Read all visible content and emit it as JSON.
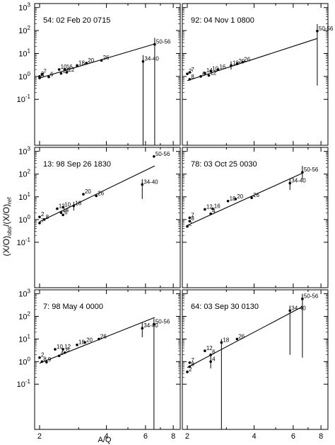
{
  "figure": {
    "ylabel": "(X/O)obs/(X/O)ref",
    "ylabel_main": "(X/O)",
    "ylabel_sub1": "obs",
    "ylabel_mid": "/(X/O)",
    "ylabel_sub2": "ref",
    "xlabel": "A/Q",
    "x_ticks": [
      2,
      4,
      6,
      8
    ],
    "x_tick_labels": [
      "2",
      "4",
      "6",
      "8"
    ],
    "y_ticks": [
      -1,
      0,
      1,
      2,
      3
    ],
    "y_tick_base": "10",
    "y_tick_exponents": [
      "-1",
      "0",
      "1",
      "2",
      "3"
    ],
    "x_scale": "log",
    "y_scale": "log"
  },
  "chart_data": [
    {
      "type": "scatter",
      "title": "54:  02 Feb 20 0715",
      "xlim": [
        1.9,
        8.6
      ],
      "ylim": [
        0.001,
        1500
      ],
      "xscale": "log",
      "yscale": "log",
      "fit_line": {
        "x": [
          2.0,
          6.6
        ],
        "y": [
          0.85,
          26
        ]
      },
      "points": [
        {
          "label": "2",
          "x": 2.0,
          "y": 1.0,
          "ylow": null,
          "yhigh": null
        },
        {
          "label": "7",
          "x": 2.05,
          "y": 1.25,
          "ylow": null,
          "yhigh": null
        },
        {
          "label": "8",
          "x": 2.0,
          "y": 0.85,
          "ylow": null,
          "yhigh": null
        },
        {
          "label": "6",
          "x": 2.2,
          "y": 0.95,
          "ylow": null,
          "yhigh": null
        },
        {
          "label": "10",
          "x": 2.45,
          "y": 2.0,
          "ylow": null,
          "yhigh": null
        },
        {
          "label": "16",
          "x": 2.6,
          "y": 2.0,
          "ylow": null,
          "yhigh": null
        },
        {
          "label": "14",
          "x": 2.5,
          "y": 1.35,
          "ylow": null,
          "yhigh": null
        },
        {
          "label": "12",
          "x": 2.65,
          "y": 1.5,
          "ylow": null,
          "yhigh": null
        },
        {
          "label": "18",
          "x": 2.95,
          "y": 3.0,
          "ylow": null,
          "yhigh": null
        },
        {
          "label": "20",
          "x": 3.25,
          "y": 3.8,
          "ylow": null,
          "yhigh": null
        },
        {
          "label": "26",
          "x": 3.8,
          "y": 5.0,
          "ylow": null,
          "yhigh": null
        },
        {
          "label": "34-40",
          "x": 5.85,
          "y": 4.5,
          "ylow": 0.001,
          "yhigh": 8.5
        },
        {
          "label": "50-56",
          "x": 6.6,
          "y": 25,
          "ylow": 0.001,
          "yhigh": 48
        }
      ]
    },
    {
      "type": "scatter",
      "title": "92:  04 Nov  1 0800",
      "xlim": [
        1.9,
        8.6
      ],
      "ylim": [
        0.001,
        1500
      ],
      "xscale": "log",
      "yscale": "log",
      "fit_line": {
        "x": [
          2.0,
          7.7
        ],
        "y": [
          0.65,
          45
        ]
      },
      "points": [
        {
          "label": "7",
          "x": 2.05,
          "y": 1.5,
          "ylow": null,
          "yhigh": null
        },
        {
          "label": "2",
          "x": 2.0,
          "y": 1.3,
          "ylow": null,
          "yhigh": null
        },
        {
          "label": "8",
          "x": 2.05,
          "y": 0.75,
          "ylow": null,
          "yhigh": null
        },
        {
          "label": "6",
          "x": 2.3,
          "y": 1.0,
          "ylow": null,
          "yhigh": null
        },
        {
          "label": "14",
          "x": 2.4,
          "y": 1.4,
          "ylow": null,
          "yhigh": null
        },
        {
          "label": "10",
          "x": 2.55,
          "y": 1.7,
          "ylow": null,
          "yhigh": null
        },
        {
          "label": "16",
          "x": 2.75,
          "y": 2.0,
          "ylow": null,
          "yhigh": null
        },
        {
          "label": "12",
          "x": 2.5,
          "y": 1.1,
          "ylow": null,
          "yhigh": null
        },
        {
          "label": "18",
          "x": 3.15,
          "y": 3.0,
          "ylow": 2.0,
          "yhigh": 4.5
        },
        {
          "label": "20",
          "x": 3.35,
          "y": 3.5,
          "ylow": null,
          "yhigh": null
        },
        {
          "label": "26",
          "x": 3.55,
          "y": 4.2,
          "ylow": null,
          "yhigh": null
        },
        {
          "label": "50-56",
          "x": 7.7,
          "y": 95,
          "ylow": 0.4,
          "yhigh": 190
        }
      ]
    },
    {
      "type": "scatter",
      "title": "13:  98 Sep 26 1830",
      "xlim": [
        1.9,
        8.6
      ],
      "ylim": [
        0.001,
        1500
      ],
      "xscale": "log",
      "yscale": "log",
      "fit_line": {
        "x": [
          2.0,
          6.6
        ],
        "y": [
          0.8,
          230
        ]
      },
      "points": [
        {
          "label": "2",
          "x": 2.0,
          "y": 1.3,
          "ylow": null,
          "yhigh": null
        },
        {
          "label": "8",
          "x": 2.1,
          "y": 1.0,
          "ylow": null,
          "yhigh": null
        },
        {
          "label": "7",
          "x": 2.0,
          "y": 0.7,
          "ylow": null,
          "yhigh": null
        },
        {
          "label": "12",
          "x": 2.4,
          "y": 3.0,
          "ylow": null,
          "yhigh": null
        },
        {
          "label": "10",
          "x": 2.55,
          "y": 3.5,
          "ylow": null,
          "yhigh": null
        },
        {
          "label": "14",
          "x": 2.5,
          "y": 2.0,
          "ylow": null,
          "yhigh": null
        },
        {
          "label": "6",
          "x": 2.55,
          "y": 1.6,
          "ylow": null,
          "yhigh": null
        },
        {
          "label": "18",
          "x": 2.85,
          "y": 4.0,
          "ylow": 2.5,
          "yhigh": 6.0
        },
        {
          "label": "20",
          "x": 3.15,
          "y": 13,
          "ylow": null,
          "yhigh": null
        },
        {
          "label": "26",
          "x": 3.6,
          "y": 11,
          "ylow": null,
          "yhigh": null
        },
        {
          "label": "34-40",
          "x": 5.8,
          "y": 35,
          "ylow": 8,
          "yhigh": 60
        },
        {
          "label": "50-56",
          "x": 6.55,
          "y": 600,
          "ylow": null,
          "yhigh": null
        }
      ]
    },
    {
      "type": "scatter",
      "title": "78:  03 Oct 25 0030",
      "xlim": [
        1.9,
        8.6
      ],
      "ylim": [
        0.001,
        1500
      ],
      "xscale": "log",
      "yscale": "log",
      "fit_line": {
        "x": [
          2.0,
          6.6
        ],
        "y": [
          0.55,
          110
        ]
      },
      "points": [
        {
          "label": "7",
          "x": 2.05,
          "y": 1.2,
          "ylow": null,
          "yhigh": null
        },
        {
          "label": "8",
          "x": 2.05,
          "y": 0.85,
          "ylow": null,
          "yhigh": null
        },
        {
          "label": "2",
          "x": 2.0,
          "y": 0.5,
          "ylow": null,
          "yhigh": null
        },
        {
          "label": "12",
          "x": 2.4,
          "y": 2.8,
          "ylow": null,
          "yhigh": null
        },
        {
          "label": "16",
          "x": 2.6,
          "y": 3.0,
          "ylow": null,
          "yhigh": null
        },
        {
          "label": "4",
          "x": 2.55,
          "y": 1.8,
          "ylow": null,
          "yhigh": null
        },
        {
          "label": "18",
          "x": 3.05,
          "y": 6.5,
          "ylow": null,
          "yhigh": null
        },
        {
          "label": "20",
          "x": 3.3,
          "y": 8.0,
          "ylow": null,
          "yhigh": null
        },
        {
          "label": "26",
          "x": 3.9,
          "y": 9.0,
          "ylow": null,
          "yhigh": null
        },
        {
          "label": "34-40",
          "x": 5.8,
          "y": 40,
          "ylow": 20,
          "yhigh": 65
        },
        {
          "label": "50-56",
          "x": 6.6,
          "y": 120,
          "ylow": 60,
          "yhigh": 230
        }
      ]
    },
    {
      "type": "scatter",
      "title": "7:  98 May  4 0000",
      "xlim": [
        1.9,
        8.6
      ],
      "ylim": [
        0.001,
        1500
      ],
      "xscale": "log",
      "yscale": "log",
      "fit_line": {
        "x": [
          2.0,
          6.6
        ],
        "y": [
          0.85,
          90
        ]
      },
      "points": [
        {
          "label": "2",
          "x": 2.0,
          "y": 1.5,
          "ylow": null,
          "yhigh": null
        },
        {
          "label": "8",
          "x": 2.05,
          "y": 1.0,
          "ylow": null,
          "yhigh": null
        },
        {
          "label": "9",
          "x": 2.15,
          "y": 0.95,
          "ylow": null,
          "yhigh": null
        },
        {
          "label": "10",
          "x": 2.35,
          "y": 3.5,
          "ylow": null,
          "yhigh": null
        },
        {
          "label": "12",
          "x": 2.55,
          "y": 3.5,
          "ylow": null,
          "yhigh": null
        },
        {
          "label": "4",
          "x": 2.45,
          "y": 1.8,
          "ylow": null,
          "yhigh": null
        },
        {
          "label": "6",
          "x": 2.6,
          "y": 2.5,
          "ylow": null,
          "yhigh": null
        },
        {
          "label": "18",
          "x": 2.95,
          "y": 5.5,
          "ylow": null,
          "yhigh": null
        },
        {
          "label": "20",
          "x": 3.2,
          "y": 7.0,
          "ylow": null,
          "yhigh": null
        },
        {
          "label": "26",
          "x": 3.7,
          "y": 10,
          "ylow": null,
          "yhigh": null
        },
        {
          "label": "34-40",
          "x": 5.8,
          "y": 30,
          "ylow": 12,
          "yhigh": 55
        },
        {
          "label": "50-56",
          "x": 6.55,
          "y": 45,
          "ylow": 0.001,
          "yhigh": 80
        }
      ]
    },
    {
      "type": "scatter",
      "title": "64:  03 Sep 30 0130",
      "xlim": [
        1.9,
        8.6
      ],
      "ylim": [
        0.001,
        1500
      ],
      "xscale": "log",
      "yscale": "log",
      "fit_line": {
        "x": [
          2.0,
          6.6
        ],
        "y": [
          0.55,
          270
        ]
      },
      "points": [
        {
          "label": "7",
          "x": 2.05,
          "y": 0.9,
          "ylow": null,
          "yhigh": null
        },
        {
          "label": "8",
          "x": 2.05,
          "y": 0.6,
          "ylow": null,
          "yhigh": null
        },
        {
          "label": "2",
          "x": 2.0,
          "y": 0.35,
          "ylow": null,
          "yhigh": null
        },
        {
          "label": "12",
          "x": 2.4,
          "y": 3.0,
          "ylow": null,
          "yhigh": null
        },
        {
          "label": "6",
          "x": 2.55,
          "y": 2.0,
          "ylow": null,
          "yhigh": null
        },
        {
          "label": "4",
          "x": 2.55,
          "y": 1.0,
          "ylow": 0.5,
          "yhigh": 2.0
        },
        {
          "label": "18",
          "x": 2.85,
          "y": 7.0,
          "ylow": 0.001,
          "yhigh": 10
        },
        {
          "label": "26",
          "x": 3.35,
          "y": 10,
          "ylow": null,
          "yhigh": null
        },
        {
          "label": "34-40",
          "x": 5.8,
          "y": 180,
          "ylow": 2.0,
          "yhigh": 300
        },
        {
          "label": "50-56",
          "x": 6.6,
          "y": 600,
          "ylow": 1.5,
          "yhigh": 1000
        }
      ]
    }
  ]
}
